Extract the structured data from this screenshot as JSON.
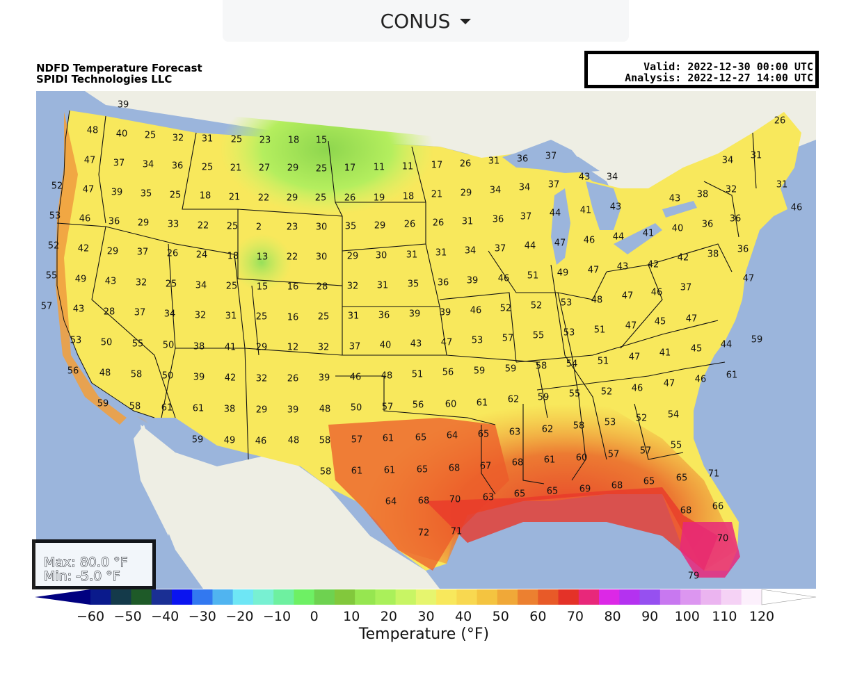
{
  "region_selector": {
    "label": "CONUS"
  },
  "header": {
    "title_line1": "NDFD Temperature Forecast",
    "title_line2": "SPIDI Technologies LLC",
    "valid": "Valid: 2022-12-30 00:00 UTC",
    "analysis": "Analysis: 2022-12-27 14:00 UTC"
  },
  "stats": {
    "max": "Max: 80.0 °F",
    "min": "Min: -5.0 °F"
  },
  "colorbar": {
    "label": "Temperature (°F)",
    "ticks": [
      "−60",
      "−50",
      "−40",
      "−30",
      "−20",
      "−10",
      "0",
      "10",
      "20",
      "30",
      "40",
      "50",
      "60",
      "70",
      "80",
      "90",
      "100",
      "110",
      "120"
    ],
    "colors": [
      "#0a1a8c",
      "#143a4a",
      "#1e5a28",
      "#1a2f94",
      "#0a14f0",
      "#3278f0",
      "#50b4f0",
      "#6ee6f5",
      "#78f0d2",
      "#6ef0a0",
      "#6ef064",
      "#6ed250",
      "#82c83c",
      "#96e650",
      "#aaf05a",
      "#c8f564",
      "#e6f56e",
      "#f8e85c",
      "#f8d850",
      "#f4c440",
      "#f0a838",
      "#ec8030",
      "#e85a28",
      "#e43228",
      "#e8287a",
      "#dc28e6",
      "#b432f0",
      "#9650f0",
      "#c878f0",
      "#dc96f0",
      "#ebb4f0",
      "#f5d2f5",
      "#fcf0fc"
    ]
  },
  "map": {
    "labels": [
      [
        "39",
        125,
        20
      ],
      [
        "48",
        81,
        57
      ],
      [
        "40",
        123,
        62
      ],
      [
        "25",
        164,
        64
      ],
      [
        "32",
        204,
        68
      ],
      [
        "31",
        246,
        69
      ],
      [
        "25",
        288,
        70
      ],
      [
        "23",
        329,
        71
      ],
      [
        "18",
        370,
        71
      ],
      [
        "15",
        410,
        71
      ],
      [
        "47",
        77,
        100
      ],
      [
        "37",
        119,
        104
      ],
      [
        "34",
        161,
        106
      ],
      [
        "36",
        203,
        108
      ],
      [
        "25",
        246,
        110
      ],
      [
        "21",
        287,
        111
      ],
      [
        "27",
        328,
        111
      ],
      [
        "29",
        369,
        111
      ],
      [
        "25",
        410,
        112
      ],
      [
        "17",
        451,
        111
      ],
      [
        "11",
        493,
        110
      ],
      [
        "11",
        534,
        109
      ],
      [
        "17",
        576,
        107
      ],
      [
        "26",
        617,
        105
      ],
      [
        "31",
        658,
        101
      ],
      [
        "36",
        699,
        98
      ],
      [
        "37",
        740,
        94
      ],
      [
        "52",
        30,
        137
      ],
      [
        "47",
        75,
        142
      ],
      [
        "39",
        116,
        146
      ],
      [
        "35",
        158,
        148
      ],
      [
        "25",
        200,
        150
      ],
      [
        "18",
        243,
        151
      ],
      [
        "21",
        285,
        153
      ],
      [
        "22",
        327,
        154
      ],
      [
        "29",
        368,
        154
      ],
      [
        "25",
        409,
        154
      ],
      [
        "26",
        451,
        154
      ],
      [
        "19",
        493,
        154
      ],
      [
        "18",
        535,
        152
      ],
      [
        "21",
        576,
        149
      ],
      [
        "29",
        618,
        147
      ],
      [
        "34",
        660,
        143
      ],
      [
        "34",
        702,
        139
      ],
      [
        "37",
        744,
        135
      ],
      [
        "43",
        788,
        124
      ],
      [
        "34",
        828,
        124
      ],
      [
        "53",
        27,
        180
      ],
      [
        "46",
        70,
        184
      ],
      [
        "36",
        112,
        188
      ],
      [
        "29",
        154,
        190
      ],
      [
        "33",
        197,
        192
      ],
      [
        "22",
        240,
        194
      ],
      [
        "25",
        282,
        195
      ],
      [
        "2",
        320,
        196
      ],
      [
        "23",
        368,
        196
      ],
      [
        "30",
        410,
        196
      ],
      [
        "35",
        452,
        195
      ],
      [
        "29",
        494,
        194
      ],
      [
        "26",
        537,
        192
      ],
      [
        "26",
        578,
        190
      ],
      [
        "31",
        620,
        188
      ],
      [
        "36",
        664,
        185
      ],
      [
        "37",
        704,
        181
      ],
      [
        "44",
        746,
        176
      ],
      [
        "41",
        790,
        172
      ],
      [
        "43",
        833,
        167
      ],
      [
        "43",
        918,
        155
      ],
      [
        "38",
        958,
        149
      ],
      [
        "32",
        999,
        142
      ],
      [
        "31",
        1035,
        93
      ],
      [
        "34",
        994,
        100
      ],
      [
        "26",
        1069,
        43
      ],
      [
        "31",
        1072,
        135
      ],
      [
        "46",
        1093,
        168
      ],
      [
        "52",
        25,
        223
      ],
      [
        "42",
        68,
        227
      ],
      [
        "29",
        110,
        231
      ],
      [
        "37",
        153,
        232
      ],
      [
        "26",
        196,
        234
      ],
      [
        "24",
        238,
        236
      ],
      [
        "18",
        283,
        238
      ],
      [
        "13",
        325,
        239
      ],
      [
        "22",
        368,
        239
      ],
      [
        "30",
        410,
        239
      ],
      [
        "29",
        455,
        238
      ],
      [
        "30",
        496,
        237
      ],
      [
        "31",
        540,
        236
      ],
      [
        "31",
        582,
        233
      ],
      [
        "34",
        624,
        230
      ],
      [
        "37",
        667,
        227
      ],
      [
        "44",
        710,
        223
      ],
      [
        "47",
        753,
        219
      ],
      [
        "46",
        795,
        215
      ],
      [
        "44",
        837,
        210
      ],
      [
        "41",
        880,
        205
      ],
      [
        "40",
        922,
        198
      ],
      [
        "36",
        965,
        192
      ],
      [
        "36",
        1005,
        184
      ],
      [
        "36",
        1016,
        228
      ],
      [
        "38",
        973,
        235
      ],
      [
        "42",
        930,
        240
      ],
      [
        "42",
        887,
        250
      ],
      [
        "55",
        22,
        266
      ],
      [
        "49",
        64,
        271
      ],
      [
        "43",
        107,
        274
      ],
      [
        "32",
        151,
        276
      ],
      [
        "25",
        194,
        278
      ],
      [
        "34",
        237,
        280
      ],
      [
        "25",
        281,
        281
      ],
      [
        "15",
        325,
        282
      ],
      [
        "16",
        369,
        282
      ],
      [
        "28",
        411,
        282
      ],
      [
        "32",
        455,
        281
      ],
      [
        "31",
        498,
        280
      ],
      [
        "35",
        542,
        278
      ],
      [
        "36",
        585,
        276
      ],
      [
        "39",
        627,
        273
      ],
      [
        "46",
        672,
        270
      ],
      [
        "51",
        714,
        266
      ],
      [
        "49",
        757,
        262
      ],
      [
        "47",
        801,
        258
      ],
      [
        "43",
        843,
        253
      ],
      [
        "47",
        850,
        295
      ],
      [
        "46",
        892,
        290
      ],
      [
        "37",
        934,
        283
      ],
      [
        "47",
        1024,
        270
      ],
      [
        "57",
        15,
        310
      ],
      [
        "43",
        61,
        314
      ],
      [
        "28",
        105,
        318
      ],
      [
        "37",
        149,
        319
      ],
      [
        "34",
        192,
        321
      ],
      [
        "32",
        236,
        323
      ],
      [
        "31",
        280,
        324
      ],
      [
        "25",
        324,
        325
      ],
      [
        "16",
        369,
        326
      ],
      [
        "25",
        413,
        325
      ],
      [
        "31",
        456,
        324
      ],
      [
        "36",
        500,
        323
      ],
      [
        "39",
        544,
        321
      ],
      [
        "39",
        588,
        319
      ],
      [
        "46",
        632,
        316
      ],
      [
        "52",
        675,
        313
      ],
      [
        "52",
        719,
        309
      ],
      [
        "53",
        762,
        305
      ],
      [
        "48",
        806,
        301
      ],
      [
        "47",
        855,
        338
      ],
      [
        "45",
        897,
        332
      ],
      [
        "47",
        942,
        328
      ],
      [
        "53",
        57,
        359
      ],
      [
        "50",
        101,
        362
      ],
      [
        "55",
        146,
        364
      ],
      [
        "50",
        190,
        366
      ],
      [
        "38",
        234,
        368
      ],
      [
        "41",
        279,
        369
      ],
      [
        "29",
        324,
        369
      ],
      [
        "12",
        369,
        369
      ],
      [
        "32",
        413,
        369
      ],
      [
        "37",
        458,
        368
      ],
      [
        "40",
        502,
        366
      ],
      [
        "43",
        546,
        364
      ],
      [
        "47",
        590,
        362
      ],
      [
        "53",
        634,
        359
      ],
      [
        "57",
        678,
        356
      ],
      [
        "55",
        722,
        352
      ],
      [
        "53",
        766,
        348
      ],
      [
        "51",
        810,
        344
      ],
      [
        "47",
        860,
        383
      ],
      [
        "41",
        904,
        377
      ],
      [
        "45",
        949,
        371
      ],
      [
        "44",
        992,
        365
      ],
      [
        "59",
        1036,
        358
      ],
      [
        "56",
        53,
        403
      ],
      [
        "48",
        99,
        406
      ],
      [
        "58",
        144,
        408
      ],
      [
        "50",
        189,
        410
      ],
      [
        "39",
        234,
        412
      ],
      [
        "42",
        279,
        413
      ],
      [
        "32",
        324,
        414
      ],
      [
        "26",
        369,
        414
      ],
      [
        "39",
        414,
        413
      ],
      [
        "46",
        459,
        412
      ],
      [
        "48",
        504,
        410
      ],
      [
        "51",
        548,
        408
      ],
      [
        "56",
        592,
        405
      ],
      [
        "59",
        637,
        403
      ],
      [
        "59",
        682,
        400
      ],
      [
        "58",
        726,
        396
      ],
      [
        "54",
        770,
        393
      ],
      [
        "51",
        815,
        389
      ],
      [
        "46",
        864,
        428
      ],
      [
        "47",
        910,
        421
      ],
      [
        "46",
        955,
        415
      ],
      [
        "61",
        1000,
        409
      ],
      [
        "59",
        96,
        450
      ],
      [
        "58",
        142,
        454
      ],
      [
        "61",
        188,
        456
      ],
      [
        "61",
        233,
        457
      ],
      [
        "38",
        278,
        458
      ],
      [
        "29",
        324,
        459
      ],
      [
        "39",
        369,
        459
      ],
      [
        "48",
        415,
        458
      ],
      [
        "50",
        460,
        456
      ],
      [
        "57",
        505,
        455
      ],
      [
        "56",
        549,
        452
      ],
      [
        "60",
        596,
        451
      ],
      [
        "61",
        641,
        449
      ],
      [
        "62",
        686,
        444
      ],
      [
        "59",
        729,
        441
      ],
      [
        "55",
        774,
        436
      ],
      [
        "52",
        820,
        433
      ],
      [
        "53",
        825,
        477
      ],
      [
        "52",
        870,
        471
      ],
      [
        "54",
        916,
        466
      ],
      [
        "55",
        920,
        510
      ],
      [
        "59",
        232,
        502
      ],
      [
        "49",
        278,
        503
      ],
      [
        "46",
        323,
        504
      ],
      [
        "48",
        370,
        503
      ],
      [
        "58",
        415,
        503
      ],
      [
        "57",
        461,
        502
      ],
      [
        "61",
        506,
        500
      ],
      [
        "65",
        553,
        499
      ],
      [
        "64",
        598,
        496
      ],
      [
        "65",
        643,
        494
      ],
      [
        "63",
        688,
        491
      ],
      [
        "62",
        735,
        487
      ],
      [
        "58",
        780,
        482
      ],
      [
        "57",
        830,
        523
      ],
      [
        "57",
        876,
        518
      ],
      [
        "58",
        416,
        548
      ],
      [
        "61",
        461,
        547
      ],
      [
        "61",
        508,
        546
      ],
      [
        "65",
        555,
        545
      ],
      [
        "68",
        601,
        543
      ],
      [
        "67",
        646,
        540
      ],
      [
        "68",
        692,
        535
      ],
      [
        "61",
        738,
        531
      ],
      [
        "60",
        784,
        528
      ],
      [
        "69",
        789,
        573
      ],
      [
        "68",
        835,
        568
      ],
      [
        "65",
        881,
        562
      ],
      [
        "65",
        928,
        557
      ],
      [
        "71",
        974,
        551
      ],
      [
        "64",
        510,
        591
      ],
      [
        "68",
        557,
        590
      ],
      [
        "70",
        602,
        588
      ],
      [
        "63",
        650,
        585
      ],
      [
        "65",
        695,
        580
      ],
      [
        "65",
        742,
        576
      ],
      [
        "68",
        934,
        604
      ],
      [
        "66",
        980,
        598
      ],
      [
        "72",
        557,
        636
      ],
      [
        "71",
        604,
        634
      ],
      [
        "70",
        987,
        644
      ],
      [
        "79",
        945,
        698
      ]
    ]
  }
}
